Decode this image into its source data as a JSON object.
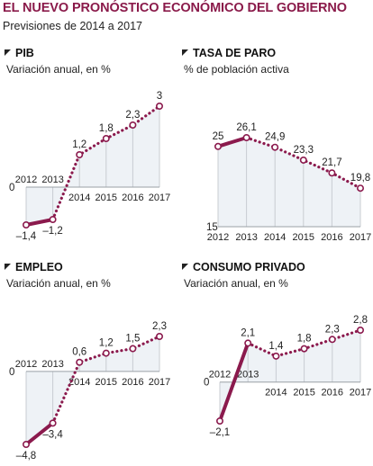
{
  "header": {
    "title": "EL NUEVO PRONÓSTICO ECONÓMICO DEL GOBIERNO",
    "subtitle": "Previsiones de 2014 a 2017"
  },
  "colors": {
    "title": "#8a1a4a",
    "line": "#8b1a4d",
    "fill": "#eef2f6",
    "grid": "#c8ccd2",
    "marker_fill": "#ffffff"
  },
  "chart_data": [
    {
      "type": "line",
      "title": "PIB",
      "subtitle": "Variación anual, en %",
      "x": [
        "2012",
        "2013",
        "2014",
        "2015",
        "2016",
        "2017"
      ],
      "values": [
        -1.4,
        -1.2,
        1.2,
        1.8,
        2.3,
        3
      ],
      "labels": [
        "–1,4",
        "–1,2",
        "1,2",
        "1,8",
        "2,3",
        "3"
      ],
      "baseline": 0,
      "baseline_label": "0",
      "solid_segment": [
        0,
        1
      ],
      "forecast_from": "2014"
    },
    {
      "type": "line",
      "title": "TASA DE PARO",
      "subtitle": "% de población activa",
      "x": [
        "2012",
        "2013",
        "2014",
        "2015",
        "2016",
        "2017"
      ],
      "values": [
        25,
        26.1,
        24.9,
        23.3,
        21.7,
        19.8
      ],
      "labels": [
        "25",
        "26,1",
        "24,9",
        "23,3",
        "21,7",
        "19,8"
      ],
      "baseline": 15,
      "baseline_label": "15",
      "solid_segment": [
        0,
        1
      ],
      "forecast_from": "2014"
    },
    {
      "type": "line",
      "title": "EMPLEO",
      "subtitle": "Variación anual, en %",
      "x": [
        "2012",
        "2013",
        "2014",
        "2015",
        "2016",
        "2017"
      ],
      "values": [
        -4.8,
        -3.4,
        0.6,
        1.2,
        1.5,
        2.3
      ],
      "labels": [
        "–4,8",
        "–3,4",
        "0,6",
        "1,2",
        "1,5",
        "2,3"
      ],
      "baseline": 0,
      "baseline_label": "0",
      "solid_segment": [
        0,
        1
      ],
      "forecast_from": "2014"
    },
    {
      "type": "line",
      "title": "CONSUMO PRIVADO",
      "subtitle": "Variación anual, en %",
      "x": [
        "2012",
        "2013",
        "2014",
        "2015",
        "2016",
        "2017"
      ],
      "values": [
        -2.1,
        2.1,
        1.4,
        1.8,
        2.3,
        2.8
      ],
      "labels": [
        "–2,1",
        "2,1",
        "1,4",
        "1,8",
        "2,3",
        "2,8"
      ],
      "baseline": 0,
      "baseline_label": "0",
      "solid_segment": [
        0,
        1
      ],
      "forecast_from": "2014"
    }
  ]
}
